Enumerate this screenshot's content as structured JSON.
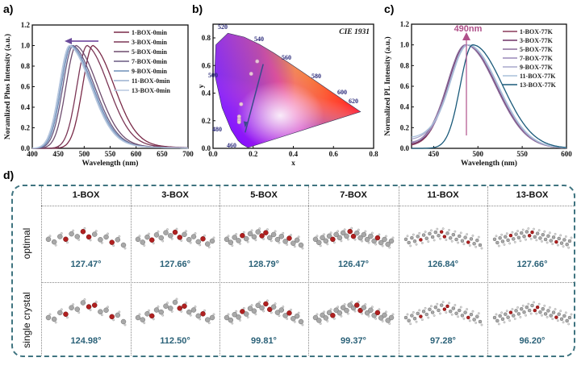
{
  "panel_labels": {
    "a": "a)",
    "b": "b)",
    "c": "c)",
    "d": "d)"
  },
  "chart_data": [
    {
      "id": "a",
      "type": "line",
      "xlabel": "Wavelength (nm)",
      "ylabel": "Noramlized Phos Intensity (a.u.)",
      "xlim": [
        400,
        700
      ],
      "ylim": [
        0,
        1.2
      ],
      "xticks": [
        "400",
        "450",
        "500",
        "550",
        "600",
        "650",
        "700"
      ],
      "yticks": [
        "0.0",
        "0.2",
        "0.4",
        "0.6",
        "0.8",
        "1.0",
        "1.2"
      ],
      "legend_position": "top-right",
      "annotation": "arrow pointing left (blue shift)",
      "series": [
        {
          "name": "1-BOX-0min",
          "peak_nm": 517,
          "color": "#7a2a48"
        },
        {
          "name": "3-BOX-0min",
          "peak_nm": 506,
          "color": "#7c3656"
        },
        {
          "name": "5-BOX-0min",
          "peak_nm": 485,
          "color": "#6e4c6e"
        },
        {
          "name": "7-BOX-0min",
          "peak_nm": 479,
          "color": "#6a5a82"
        },
        {
          "name": "9-BOX-0min",
          "peak_nm": 476,
          "color": "#6f8fb8"
        },
        {
          "name": "11-BOX-0min",
          "peak_nm": 474,
          "color": "#9ab0cf"
        },
        {
          "name": "13-BOX-0min",
          "peak_nm": 472,
          "color": "#b8c8e0"
        }
      ]
    },
    {
      "id": "b",
      "type": "scatter",
      "title": "CIE 1931",
      "xlabel": "x",
      "ylabel": "y",
      "xlim": [
        0,
        0.8
      ],
      "ylim": [
        0,
        0.9
      ],
      "xticks": [
        "0.0",
        "0.2",
        "0.4",
        "0.6",
        "0.8"
      ],
      "yticks": [
        "0.0",
        "0.2",
        "0.4",
        "0.6",
        "0.8"
      ],
      "wavelength_labels": [
        "460",
        "480",
        "500",
        "520",
        "540",
        "560",
        "580",
        "600",
        "620"
      ],
      "points": [
        {
          "x": 0.22,
          "y": 0.63
        },
        {
          "x": 0.19,
          "y": 0.54
        },
        {
          "x": 0.14,
          "y": 0.32
        },
        {
          "x": 0.13,
          "y": 0.23
        },
        {
          "x": 0.13,
          "y": 0.21
        },
        {
          "x": 0.13,
          "y": 0.2
        },
        {
          "x": 0.13,
          "y": 0.19
        }
      ],
      "arrow": {
        "from": [
          0.25,
          0.61
        ],
        "to": [
          0.16,
          0.15
        ]
      }
    },
    {
      "id": "c",
      "type": "line",
      "xlabel": "Wavelength (nm)",
      "ylabel": "Normalized PL Intensity (a.u.)",
      "xlim": [
        425,
        600
      ],
      "ylim": [
        0,
        1.2
      ],
      "xticks": [
        "450",
        "500",
        "550",
        "600"
      ],
      "yticks": [
        "0.0",
        "0.2",
        "0.4",
        "0.6",
        "0.8",
        "1.0",
        "1.2"
      ],
      "legend_position": "top-right",
      "annotation": "490nm",
      "annotation_color": "#b0508a",
      "series": [
        {
          "name": "1-BOX-77K",
          "peak_nm": 487,
          "baseline": 0.02,
          "color": "#8a3a5a"
        },
        {
          "name": "3-BOX-77K",
          "peak_nm": 487,
          "baseline": 0.03,
          "color": "#6e3266"
        },
        {
          "name": "5-BOX-77K",
          "peak_nm": 486,
          "baseline": 0.04,
          "color": "#8a6a9a"
        },
        {
          "name": "7-BOX-77K",
          "peak_nm": 488,
          "baseline": 0.05,
          "color": "#9a88b8"
        },
        {
          "name": "9-BOX-77K",
          "peak_nm": 488,
          "baseline": 0.08,
          "color": "#a8a8cc"
        },
        {
          "name": "11-BOX-77K",
          "peak_nm": 489,
          "baseline": 0.1,
          "color": "#a8c0da"
        },
        {
          "name": "13-BOX-77K",
          "peak_nm": 494,
          "baseline": 0.0,
          "color": "#1a5a7a"
        }
      ]
    },
    {
      "id": "d",
      "type": "table",
      "columns": [
        "1-BOX",
        "3-BOX",
        "5-BOX",
        "7-BOX",
        "11-BOX",
        "13-BOX"
      ],
      "rows": [
        {
          "label": "optimal",
          "angles": [
            "127.47°",
            "127.66°",
            "128.79°",
            "126.47°",
            "126.84°",
            "127.66°"
          ]
        },
        {
          "label": "single crystal",
          "angles": [
            "124.98°",
            "112.50°",
            "99.81°",
            "99.37°",
            "97.28°",
            "96.20°"
          ]
        }
      ]
    }
  ]
}
